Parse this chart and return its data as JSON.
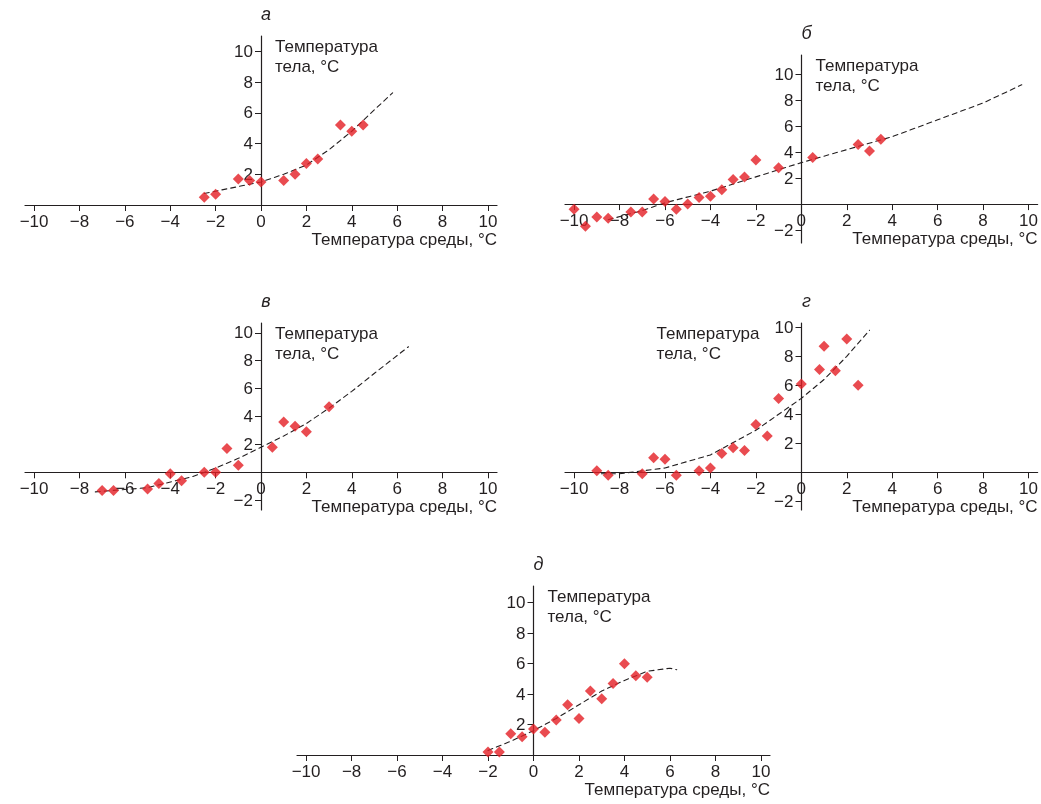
{
  "chart_data": [
    {
      "type": "scatter",
      "title": "а",
      "xlabel": "Температура среды, °C",
      "ylabel": "Температура тела, °C",
      "xlim": [
        -10.4,
        10.4
      ],
      "xticks": [
        -10,
        -8,
        -6,
        -4,
        -2,
        0,
        2,
        4,
        6,
        8,
        10
      ],
      "ylim": [
        0,
        11
      ],
      "yticks": [
        2,
        4,
        6,
        8,
        10
      ],
      "series": [
        {
          "type": "scatter",
          "color": "#e31e24",
          "marker": "diamond",
          "x": [
            -2.5,
            -2,
            -1,
            -0.5,
            0,
            1,
            1.5,
            2,
            2.5,
            3.5,
            4,
            4.5
          ],
          "values": [
            0.5,
            0.7,
            1.7,
            1.6,
            1.5,
            1.6,
            2.0,
            2.7,
            3.0,
            5.2,
            4.8,
            5.2
          ]
        },
        {
          "type": "line",
          "color": "#231f20",
          "marker": "none",
          "line_style": "dashed",
          "x": [
            -2.5,
            -1,
            0,
            1,
            2,
            3,
            4,
            5,
            5.8
          ],
          "values": [
            0.75,
            1.2,
            1.5,
            2.0,
            2.6,
            3.6,
            4.8,
            6.2,
            7.3
          ]
        }
      ]
    },
    {
      "type": "scatter",
      "title": "б",
      "xlabel": "Температура среды, °C",
      "ylabel": "Температура тела, °C",
      "xlim": [
        -10.4,
        10.4
      ],
      "xticks": [
        -10,
        -8,
        -6,
        -4,
        -2,
        0,
        2,
        4,
        6,
        8,
        10
      ],
      "ylim": [
        -3,
        11.5
      ],
      "yticks": [
        -2,
        2,
        4,
        6,
        8,
        10
      ],
      "series": [
        {
          "type": "scatter",
          "color": "#e31e24",
          "marker": "diamond",
          "x": [
            -10,
            -9.5,
            -9,
            -8.5,
            -7.5,
            -7,
            -6.5,
            -6,
            -5.5,
            -5,
            -4.5,
            -4,
            -3.5,
            -3,
            -2.5,
            -2,
            -1,
            0.5,
            2.5,
            3,
            3.5
          ],
          "values": [
            -0.4,
            -1.7,
            -1.0,
            -1.1,
            -0.6,
            -0.6,
            0.4,
            0.2,
            -0.4,
            0,
            0.5,
            0.6,
            1.1,
            1.9,
            2.1,
            3.4,
            2.8,
            3.6,
            4.6,
            4.1,
            5.0
          ]
        },
        {
          "type": "line",
          "color": "#231f20",
          "marker": "none",
          "line_style": "dashed",
          "x": [
            -8.5,
            -7,
            -6,
            -4,
            -2,
            0,
            2,
            4,
            6,
            8,
            9.7
          ],
          "values": [
            -1.2,
            -0.5,
            0.1,
            1.0,
            2.1,
            3.2,
            4.2,
            5.2,
            6.5,
            7.8,
            9.2
          ]
        }
      ]
    },
    {
      "type": "scatter",
      "title": "в",
      "xlabel": "Температура среды, °C",
      "ylabel": "Температура тела, °C",
      "xlim": [
        -10.4,
        10.4
      ],
      "xticks": [
        -10,
        -8,
        -6,
        -4,
        -2,
        0,
        2,
        4,
        6,
        8,
        10
      ],
      "ylim": [
        -2.7,
        10.7
      ],
      "yticks": [
        -2,
        2,
        4,
        6,
        8,
        10
      ],
      "series": [
        {
          "type": "scatter",
          "color": "#e31e24",
          "marker": "diamond",
          "x": [
            -7,
            -6.5,
            -5,
            -4.5,
            -4,
            -3.5,
            -2.5,
            -2,
            -1.5,
            -1,
            0.5,
            1,
            1.5,
            2,
            3
          ],
          "values": [
            -1.3,
            -1.3,
            -1.2,
            -0.8,
            -0.1,
            -0.6,
            0,
            0,
            1.7,
            0.5,
            1.8,
            3.6,
            3.3,
            2.9,
            4.7
          ]
        },
        {
          "type": "line",
          "color": "#231f20",
          "marker": "none",
          "line_style": "dashed",
          "x": [
            -7.3,
            -5,
            -3,
            -2,
            -1,
            0,
            1,
            2,
            3,
            4,
            5,
            6.5
          ],
          "values": [
            -1.4,
            -1.1,
            -0.3,
            0.3,
            1.0,
            1.8,
            2.6,
            3.5,
            4.6,
            5.8,
            7.1,
            9.0
          ]
        }
      ]
    },
    {
      "type": "scatter",
      "title": "г",
      "xlabel": "Температура среды, °C",
      "ylabel": "Температура тела, °C",
      "xlim": [
        -10.4,
        10.4
      ],
      "xticks": [
        -10,
        -8,
        -6,
        -4,
        -2,
        0,
        2,
        4,
        6,
        8,
        10
      ],
      "ylim": [
        -2.6,
        10.3
      ],
      "yticks": [
        -2,
        2,
        4,
        6,
        8,
        10
      ],
      "series": [
        {
          "type": "scatter",
          "color": "#e31e24",
          "marker": "diamond",
          "x": [
            -9,
            -8.5,
            -7,
            -6.5,
            -6,
            -5.5,
            -4.5,
            -4,
            -3.5,
            -3,
            -2.5,
            -2,
            -1.5,
            -1,
            0,
            0.8,
            1,
            1.5,
            2,
            2.5
          ],
          "values": [
            0.1,
            -0.2,
            -0.1,
            1.0,
            0.9,
            -0.2,
            0.1,
            0.3,
            1.3,
            1.7,
            1.5,
            3.3,
            2.5,
            5.1,
            6.1,
            7.1,
            8.7,
            7.0,
            9.2,
            6.0
          ]
        },
        {
          "type": "line",
          "color": "#231f20",
          "marker": "none",
          "line_style": "dashed",
          "x": [
            -8.8,
            -8,
            -6,
            -4,
            -2,
            0,
            1,
            2,
            3
          ],
          "values": [
            -0.1,
            -0.1,
            0.3,
            1.2,
            2.9,
            5.1,
            6.4,
            8.0,
            9.8
          ]
        }
      ]
    },
    {
      "type": "scatter",
      "title": "д",
      "xlabel": "Температура среды, °C",
      "ylabel": "Температура тела, °C",
      "xlim": [
        -10.4,
        10.4
      ],
      "xticks": [
        -10,
        -8,
        -6,
        -4,
        -2,
        0,
        2,
        4,
        6,
        8,
        10
      ],
      "ylim": [
        0,
        11.1
      ],
      "yticks": [
        2,
        4,
        6,
        8,
        10
      ],
      "series": [
        {
          "type": "scatter",
          "color": "#e31e24",
          "marker": "diamond",
          "x": [
            -2,
            -1.5,
            -1,
            -0.5,
            0,
            0.5,
            1,
            1.5,
            2,
            2.5,
            3,
            3.5,
            4,
            4.5,
            5
          ],
          "values": [
            0.2,
            0.2,
            1.4,
            1.2,
            1.7,
            1.5,
            2.3,
            3.3,
            2.4,
            4.2,
            3.7,
            4.7,
            6.0,
            5.2,
            5.1
          ]
        },
        {
          "type": "line",
          "color": "#231f20",
          "marker": "none",
          "line_style": "dashed",
          "x": [
            -2,
            -1,
            0,
            1,
            2,
            3,
            4,
            5,
            6,
            6.3
          ],
          "values": [
            0.3,
            0.9,
            1.6,
            2.4,
            3.3,
            4.2,
            4.9,
            5.5,
            5.7,
            5.6
          ]
        }
      ]
    }
  ]
}
